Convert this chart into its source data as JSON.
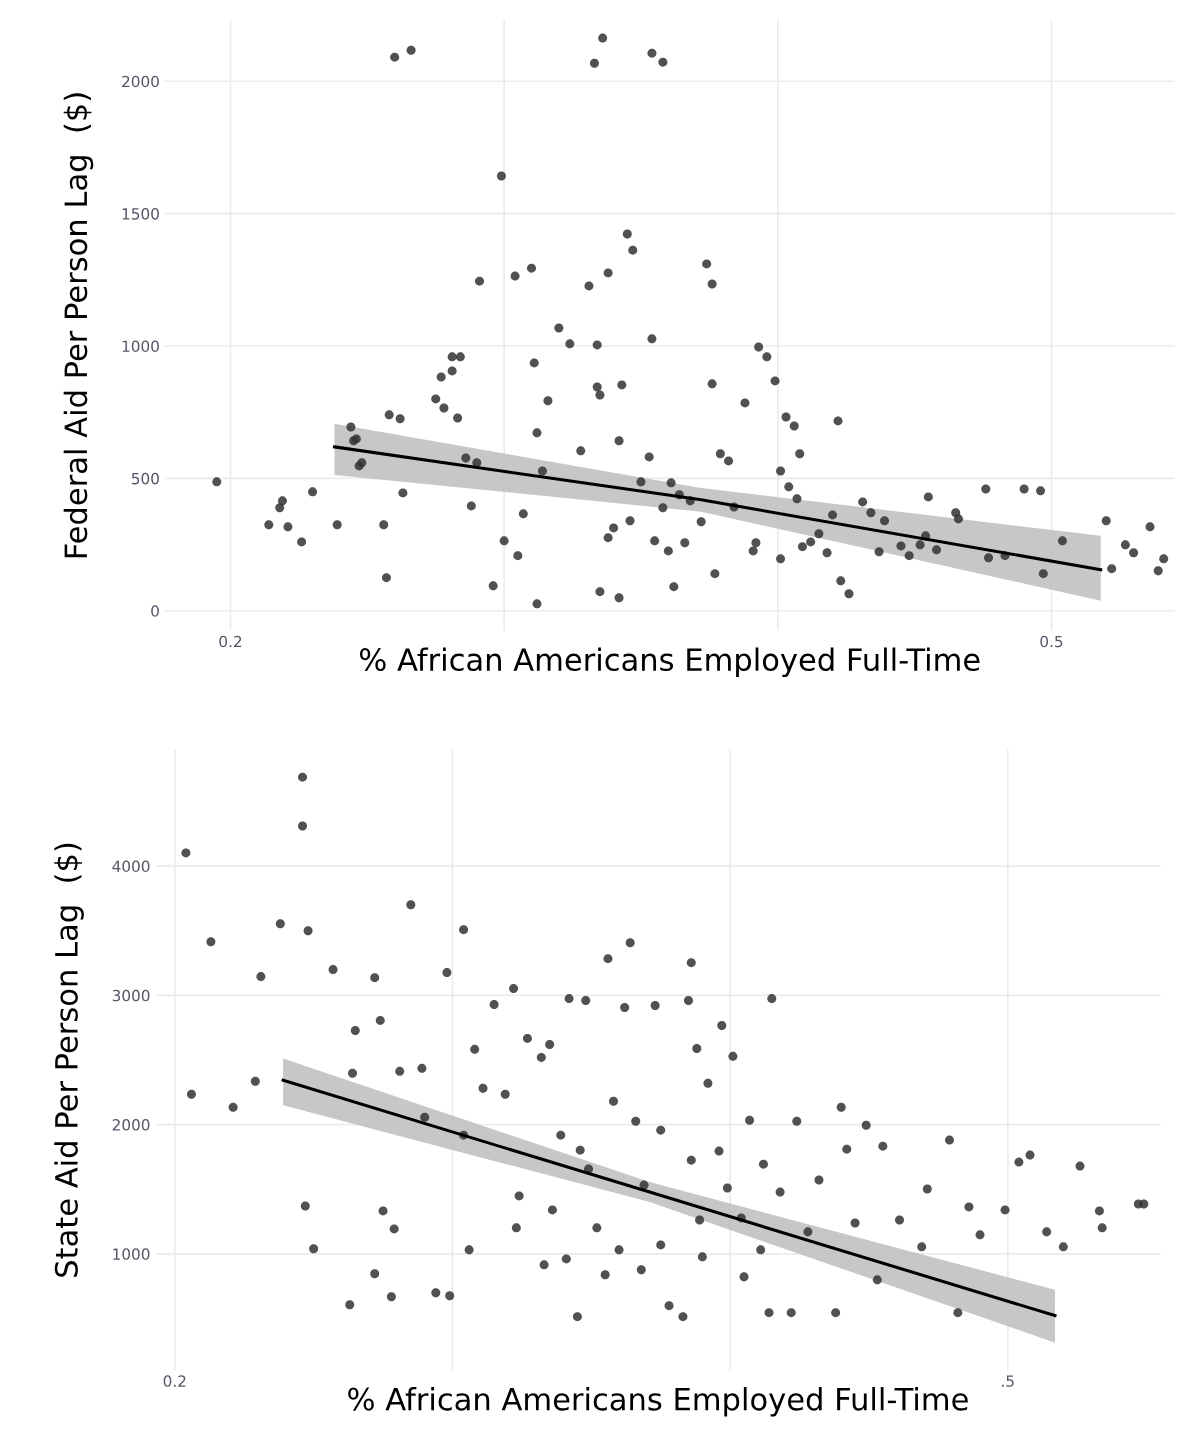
{
  "chart_data": [
    {
      "type": "scatter",
      "xlabel": "% African Americans Employed Full-Time",
      "ylabel": "Federal Aid Per Person Lag  ($)",
      "xlim": [
        0.176,
        0.545
      ],
      "ylim": [
        -75,
        2230
      ],
      "xticks": [
        {
          "value": 0.2,
          "label": "0.2"
        },
        {
          "value": 0.3,
          "label": null
        },
        {
          "value": 0.4,
          "label": null
        },
        {
          "value": 0.5,
          "label": "0.5"
        }
      ],
      "yticks": [
        0,
        500,
        1000,
        1500,
        2000
      ],
      "grid": true,
      "series": [
        {
          "color": "#333333",
          "marker": "circle",
          "x": [
            0.195,
            0.214,
            0.218,
            0.219,
            0.221,
            0.226,
            0.23,
            0.239,
            0.244,
            0.245,
            0.246,
            0.247,
            0.248,
            0.256,
            0.257,
            0.258,
            0.262,
            0.263,
            0.275,
            0.277,
            0.278,
            0.281,
            0.281,
            0.283,
            0.284,
            0.286,
            0.288,
            0.29,
            0.291,
            0.296,
            0.299,
            0.3,
            0.304,
            0.305,
            0.307,
            0.31,
            0.312,
            0.312,
            0.311,
            0.314,
            0.316,
            0.32,
            0.324,
            0.335,
            0.342,
            0.331,
            0.345,
            0.347,
            0.338,
            0.334,
            0.334,
            0.335,
            0.328,
            0.338,
            0.34,
            0.342,
            0.343,
            0.346,
            0.35,
            0.353,
            0.354,
            0.355,
            0.358,
            0.36,
            0.361,
            0.362,
            0.364,
            0.366,
            0.368,
            0.372,
            0.374,
            0.376,
            0.376,
            0.377,
            0.379,
            0.382,
            0.384,
            0.388,
            0.391,
            0.392,
            0.393,
            0.396,
            0.399,
            0.401,
            0.401,
            0.403,
            0.404,
            0.406,
            0.407,
            0.408,
            0.409,
            0.412,
            0.415,
            0.418,
            0.42,
            0.422,
            0.423,
            0.426,
            0.431,
            0.434,
            0.437,
            0.439,
            0.445,
            0.448,
            0.452,
            0.454,
            0.455,
            0.458,
            0.465,
            0.466,
            0.476,
            0.477,
            0.483,
            0.49,
            0.496,
            0.497,
            0.504,
            0.52,
            0.522,
            0.527,
            0.53,
            0.536,
            0.539,
            0.541,
            0.26,
            0.266,
            0.336,
            0.333,
            0.354,
            0.358
          ],
          "values": [
            487,
            325,
            389,
            415,
            317,
            260,
            449,
            325,
            694,
            642,
            649,
            547,
            559,
            325,
            125,
            740,
            725,
            445,
            800,
            883,
            766,
            906,
            959,
            728,
            959,
            577,
            396,
            559,
            1245,
            94,
            1642,
            264,
            1264,
            208,
            366,
            1294,
            672,
            26,
            936,
            528,
            793,
            1068,
            1008,
            72,
            49,
            1227,
            1423,
            1362,
            1276,
            1004,
            845,
            815,
            604,
            276,
            313,
            642,
            853,
            340,
            487,
            581,
            1027,
            264,
            389,
            226,
            483,
            91,
            438,
            257,
            415,
            336,
            1310,
            1234,
            857,
            140,
            593,
            566,
            392,
            785,
            226,
            257,
            996,
            959,
            868,
            528,
            196,
            732,
            468,
            698,
            423,
            593,
            242,
            260,
            291,
            219,
            362,
            717,
            113,
            64,
            411,
            370,
            223,
            340,
            245,
            208,
            249,
            283,
            430,
            230,
            370,
            347,
            460,
            200,
            208,
            460,
            453,
            140,
            264,
            340,
            159,
            249,
            219,
            317,
            151,
            196,
            2091,
            2117,
            2163,
            2068,
            2106,
            2072
          ]
        },
        {
          "type": "line",
          "color": "#000000",
          "x": [
            0.238,
            0.372,
            0.518
          ],
          "values": [
            619,
            419,
            155
          ],
          "lower": [
            513,
            374,
            38
          ],
          "upper": [
            706,
            464,
            283
          ]
        }
      ]
    },
    {
      "type": "scatter",
      "xlabel": "% African Americans Employed Full-Time",
      "ylabel": "State Aid Per Person Lag  ($)",
      "xlim": [
        0.193,
        0.555
      ],
      "ylim": [
        100,
        4900
      ],
      "xticks": [
        {
          "value": 0.2,
          "label": "0.2"
        },
        {
          "value": 0.3,
          "label": null
        },
        {
          "value": 0.4,
          "label": null
        },
        {
          "value": 0.5,
          "label": ".5"
        }
      ],
      "yticks": [
        1000,
        2000,
        3000,
        4000
      ],
      "grid": true,
      "series": [
        {
          "color": "#333333",
          "marker": "circle",
          "x": [
            0.204,
            0.206,
            0.213,
            0.221,
            0.229,
            0.231,
            0.238,
            0.246,
            0.246,
            0.248,
            0.247,
            0.25,
            0.257,
            0.263,
            0.264,
            0.265,
            0.272,
            0.274,
            0.278,
            0.272,
            0.275,
            0.281,
            0.285,
            0.279,
            0.289,
            0.29,
            0.294,
            0.299,
            0.298,
            0.304,
            0.304,
            0.306,
            0.308,
            0.315,
            0.311,
            0.319,
            0.322,
            0.323,
            0.324,
            0.327,
            0.332,
            0.333,
            0.335,
            0.336,
            0.339,
            0.341,
            0.342,
            0.345,
            0.348,
            0.349,
            0.352,
            0.355,
            0.356,
            0.358,
            0.364,
            0.362,
            0.366,
            0.369,
            0.373,
            0.375,
            0.378,
            0.383,
            0.385,
            0.386,
            0.388,
            0.39,
            0.392,
            0.396,
            0.397,
            0.399,
            0.401,
            0.404,
            0.405,
            0.412,
            0.414,
            0.415,
            0.418,
            0.422,
            0.424,
            0.428,
            0.438,
            0.44,
            0.442,
            0.445,
            0.449,
            0.455,
            0.461,
            0.469,
            0.471,
            0.482,
            0.486,
            0.49,
            0.499,
            0.504,
            0.508,
            0.514,
            0.52,
            0.526,
            0.533,
            0.534,
            0.547,
            0.549,
            0.375,
            0.386,
            0.389,
            0.36,
            0.346,
            0.407,
            0.411,
            0.432,
            0.453,
            0.479,
            0.368
          ],
          "values": [
            4102,
            2235,
            3415,
            2134,
            2335,
            3145,
            3554,
            4688,
            4310,
            3500,
            1370,
            1039,
            3199,
            606,
            2397,
            2728,
            3137,
            2806,
            668,
            846,
            1332,
            2412,
            3701,
            1193,
            2435,
            2057,
            699,
            676,
            3176,
            3508,
            1918,
            1031,
            2582,
            2929,
            2281,
            2235,
            3052,
            1201,
            1448,
            2667,
            2520,
            915,
            2620,
            1340,
            1918,
            961,
            2975,
            514,
            2960,
            1656,
            1201,
            838,
            3284,
            2181,
            3407,
            2906,
            2026,
            1532,
            2921,
            1069,
            599,
            514,
            2960,
            3253,
            2589,
            977,
            2319,
            1795,
            2767,
            1509,
            2528,
            1278,
            823,
            1694,
            545,
            2975,
            1478,
            545,
            2026,
            1170,
            545,
            2134,
            1810,
            1239,
            1995,
            1833,
            1262,
            1054,
            1502,
            545,
            1363,
            1147,
            1340,
            1710,
            1764,
            1170,
            1054,
            1679,
            1332,
            1201,
            1386,
            1386,
            1957,
            1725,
            1262,
            1031,
            1802,
            2034,
            1031,
            1571,
            799,
            1880,
            877
          ]
        },
        {
          "type": "line",
          "color": "#000000",
          "x": [
            0.239,
            0.371,
            0.517
          ],
          "values": [
            2343,
            1478,
            522
          ],
          "lower": [
            2150,
            1401,
            313
          ],
          "upper": [
            2512,
            1555,
            722
          ]
        }
      ]
    }
  ]
}
